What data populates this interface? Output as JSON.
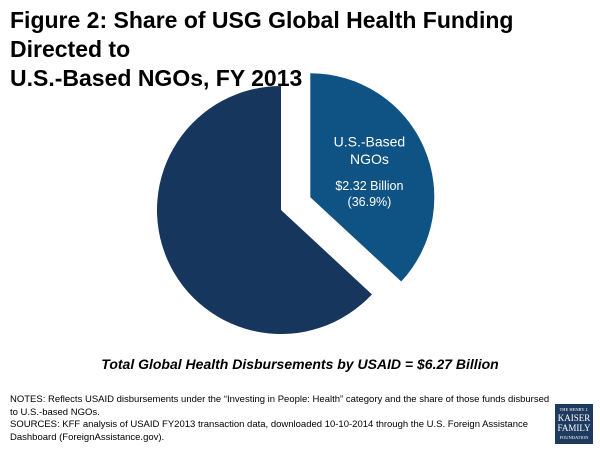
{
  "title_line1": "Figure 2: Share of USG Global Health Funding Directed to",
  "title_line2": "U.S.-Based NGOs, FY 2013",
  "chart_data": {
    "type": "pie",
    "title": "Figure 2: Share of USG Global Health Funding Directed to U.S.-Based NGOs, FY 2013",
    "slices": [
      {
        "label_lines": [
          "U.S.-Based",
          "NGOs"
        ],
        "value_text": "$2.32 Billion",
        "pct_text": "(36.9%)",
        "value": 2.32,
        "percent": 36.9,
        "color": "#0f5384",
        "exploded": true
      },
      {
        "value": 3.95,
        "percent": 63.1,
        "color": "#17365d",
        "exploded": false
      }
    ],
    "total_text": "Total Global Health Disbursements by USAID = $6.27 Billion"
  },
  "notes": "NOTES: Reflects USAID disbursements under the “Investing in People: Health” category and the share of those funds disbursed to U.S.-based NGOs.",
  "sources": "SOURCES: KFF analysis of  USAID FY2013 transaction data, downloaded 10-10-2014 through the U.S. Foreign Assistance Dashboard (ForeignAssistance.gov).",
  "logo": {
    "line1": "THE HENRY J.",
    "line2": "KAISER",
    "line3": "FAMILY",
    "line4": "FOUNDATION",
    "color": "#1f3a5f"
  }
}
